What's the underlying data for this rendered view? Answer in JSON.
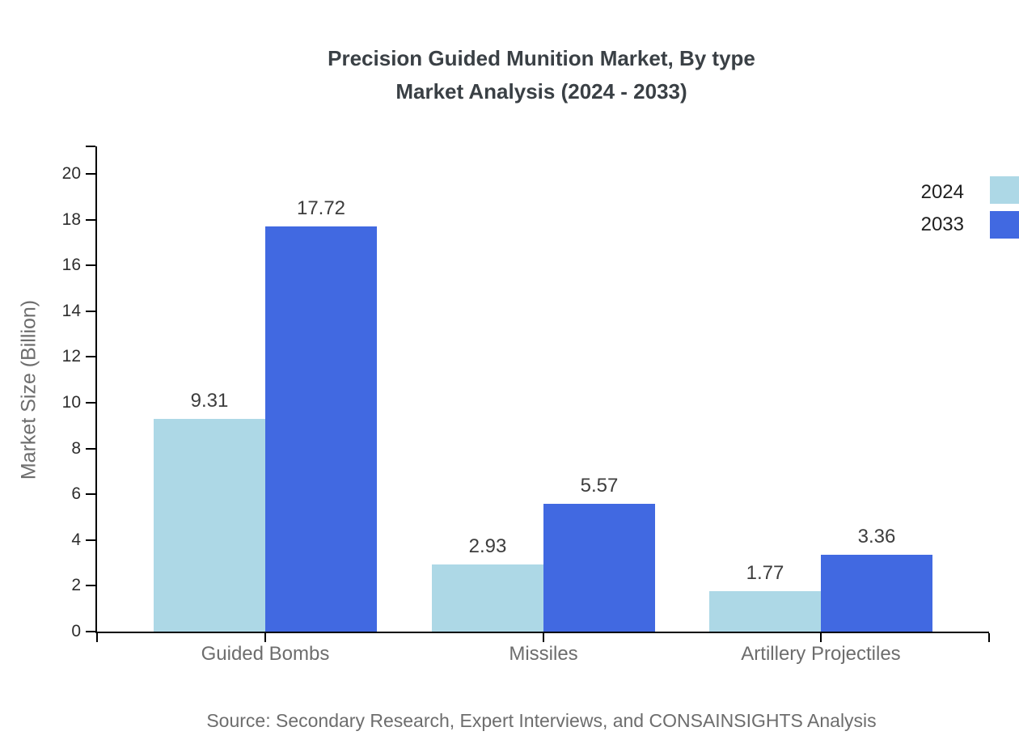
{
  "title": {
    "line1": "Precision Guided Munition Market, By type",
    "line2": "Market Analysis (2024 - 2033)"
  },
  "chart_data": {
    "type": "bar",
    "title": "Precision Guided Munition Market, By type Market Analysis (2024 - 2033)",
    "categories": [
      "Guided Bombs",
      "Missiles",
      "Artillery Projectiles"
    ],
    "series": [
      {
        "name": "2024",
        "color": "#add8e6",
        "values": [
          9.31,
          2.93,
          1.77
        ]
      },
      {
        "name": "2033",
        "color": "#4169e1",
        "values": [
          17.72,
          5.57,
          3.36
        ]
      }
    ],
    "xlabel": "",
    "ylabel": "Market Size (Billion)",
    "ylim": [
      0,
      20
    ],
    "yticks": [
      0,
      2,
      4,
      6,
      8,
      10,
      12,
      14,
      16,
      18,
      20
    ],
    "grid": false,
    "legend_position": "top-right",
    "value_labels": true
  },
  "legend": {
    "items": [
      {
        "label": "2024",
        "color": "#add8e6"
      },
      {
        "label": "2033",
        "color": "#4169e1"
      }
    ]
  },
  "source": "Source: Secondary Research, Expert Interviews, and CONSAINSIGHTS Analysis",
  "colors": {
    "series_2024": "#add8e6",
    "series_2033": "#4169e1",
    "axis": "#000000",
    "title_text": "#3a4045",
    "tick_text": "#2d2d2d",
    "muted_text": "#6d6d6d"
  }
}
